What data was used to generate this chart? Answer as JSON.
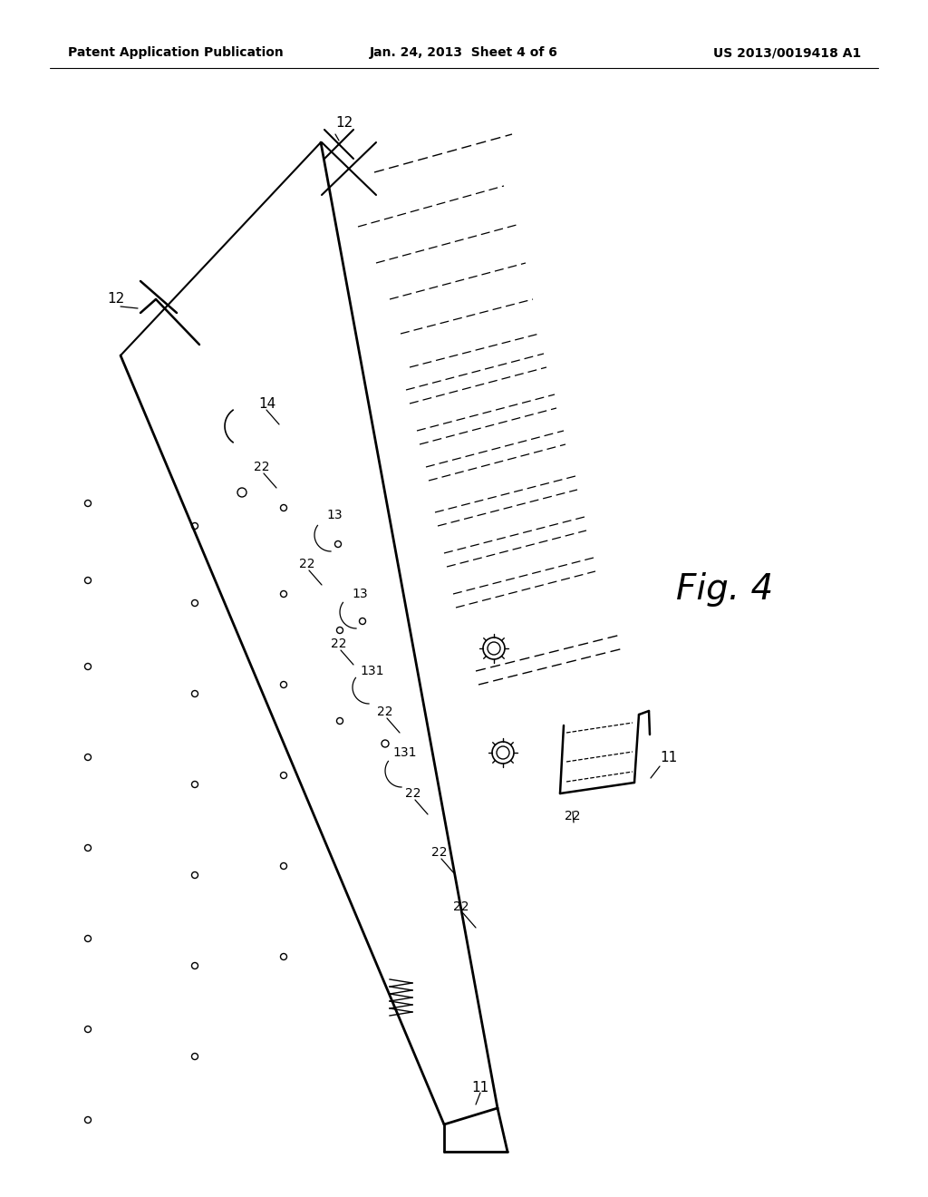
{
  "title_left": "Patent Application Publication",
  "title_mid": "Jan. 24, 2013  Sheet 4 of 6",
  "title_right": "US 2013/0019418 A1",
  "fig_label": "Fig. 4",
  "bg_color": "#ffffff"
}
